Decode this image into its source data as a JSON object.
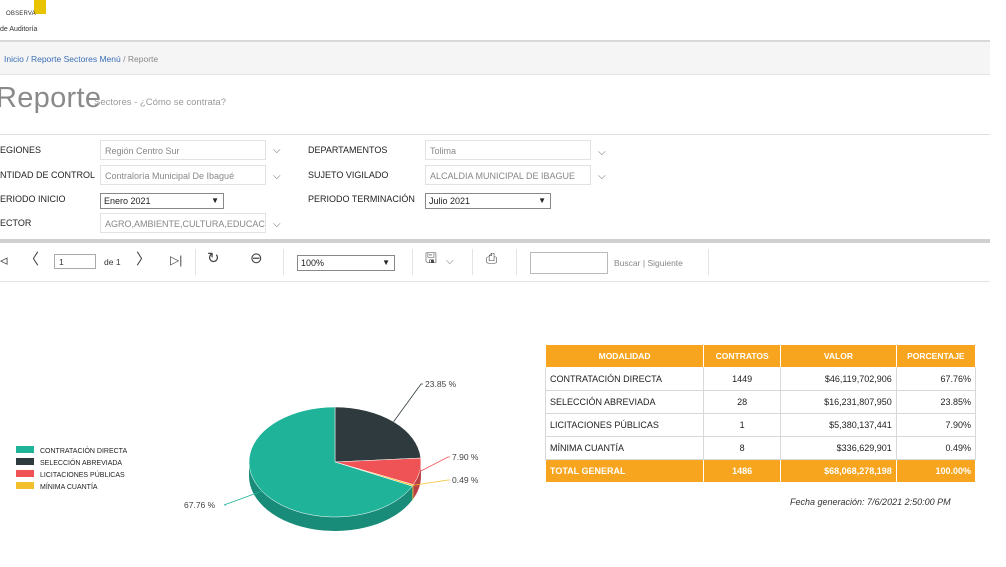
{
  "header": {
    "logo_line1": "OBSERVA",
    "logo_line2": "de Auditoría"
  },
  "breadcrumb": {
    "home": "Inicio",
    "menu": "Reporte Sectores Menú",
    "current": "Reporte",
    "sep": "/"
  },
  "page": {
    "title": "Reporte",
    "subtitle": "Sectores - ¿Cómo se contrata?"
  },
  "params": {
    "regiones": {
      "label": "EGIONES",
      "value": "Región Centro Sur"
    },
    "departamentos": {
      "label": "DEPARTAMENTOS",
      "value": "Tolima"
    },
    "entidad": {
      "label": "NTIDAD DE CONTROL",
      "value": "Contraloría Municipal De Ibagué"
    },
    "sujeto": {
      "label": "SUJETO VIGILADO",
      "value": "ALCALDIA MUNICIPAL DE IBAGUE"
    },
    "periodo_inicio": {
      "label": "ERIODO INICIO",
      "value": "Enero 2021"
    },
    "periodo_fin": {
      "label": "PERIODO TERMINACIÓN",
      "value": "Julio 2021"
    },
    "sector": {
      "label": "ECTOR",
      "value": "AGRO,AMBIENTE,CULTURA,EDUCACION"
    }
  },
  "toolbar": {
    "page_value": "1",
    "page_of": "de 1",
    "zoom": "100%",
    "find_label": "Buscar",
    "find_sep": "|",
    "next_label": "Siguiente"
  },
  "icons": {
    "first": "◃",
    "prev": "〈",
    "next": "〉",
    "last": "▷|",
    "refresh": "↻",
    "back": "⊖",
    "save": "🖫",
    "print": "⎙",
    "dropdown": "⌵"
  },
  "colors": {
    "header_orange": "#f7a51e",
    "teal": "#1fb39a",
    "dark": "#2e3a3d",
    "red": "#ef5356",
    "yellow": "#f2c02c"
  },
  "table": {
    "headers": [
      "MODALIDAD",
      "CONTRATOS",
      "VALOR",
      "PORCENTAJE"
    ],
    "rows": [
      [
        "CONTRATACIÓN DIRECTA",
        "1449",
        "$46,119,702,906",
        "67.76%"
      ],
      [
        "SELECCIÓN ABREVIADA",
        "28",
        "$16,231,807,950",
        "23.85%"
      ],
      [
        "LICITACIONES PÚBLICAS",
        "1",
        "$5,380,137,441",
        "7.90%"
      ],
      [
        "MÍNIMA CUANTÍA",
        "8",
        "$336,629,901",
        "0.49%"
      ]
    ],
    "total": [
      "TOTAL GENERAL",
      "1486",
      "$68,068,278,198",
      "100.00%"
    ]
  },
  "generated": "Fecha generación: 7/6/2021 2:50:00 PM",
  "chart_data": {
    "type": "pie",
    "categories": [
      "CONTRATACIÓN DIRECTA",
      "SELECCIÓN ABREVIADA",
      "LICITACIONES PÚBLICAS",
      "MÍNIMA CUANTÍA"
    ],
    "values": [
      67.76,
      23.85,
      7.9,
      0.49
    ],
    "labels": [
      "67.76 %",
      "23.85 %",
      "7.90 %",
      "0.49 %"
    ],
    "colors": [
      "#1fb39a",
      "#2e3a3d",
      "#ef5356",
      "#f2c02c"
    ],
    "legend": "left"
  }
}
